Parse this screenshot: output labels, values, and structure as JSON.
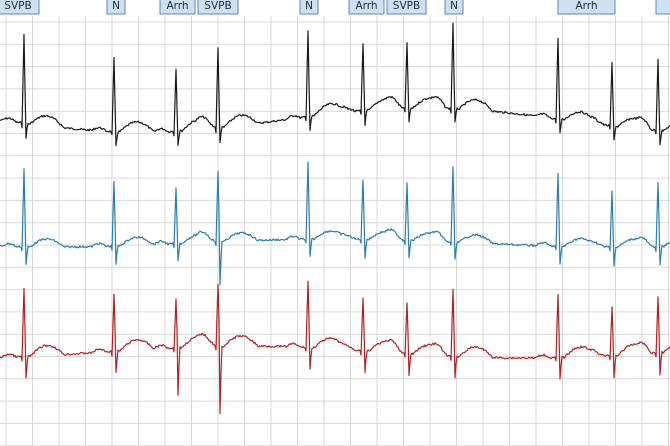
{
  "annotations": [
    "SVPB",
    "N",
    "Arrh",
    "SVPB",
    "N",
    "Arrh",
    "SVPB",
    "N",
    "Arrh"
  ]
}
